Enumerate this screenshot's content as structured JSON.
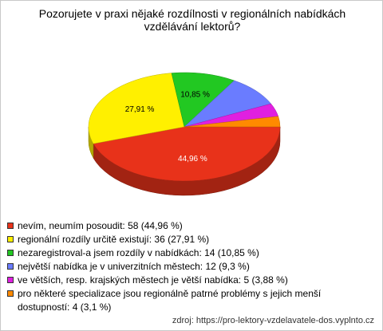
{
  "chart_data": {
    "type": "pie3d",
    "title": "Pozorujete v praxi nějaké rozdílnosti v regionálních nabídkách vzdělávání lektorů?",
    "categories": [
      "nevím, neumím posoudit: 58 (44,96 %)",
      "regionální rozdíly určitě existují: 36 (27,91 %)",
      "nezaregistroval-a jsem rozdíly v nabídkách: 14 (10,85 %)",
      "největší nabídka je v univerzitních městech: 12 (9,3 %)",
      "ve větších, resp. krajských městech je větší nabídka: 5 (3,88 %)",
      "pro některé specializace jsou regionálně patrné problémy s jejich menší dostupností: 4 (3,1 %)"
    ],
    "values": [
      44.96,
      27.91,
      10.85,
      9.3,
      3.88,
      3.1
    ],
    "value_labels": [
      "44,96 %",
      "27,91 %",
      "10,85 %",
      null,
      null,
      null
    ],
    "colors": [
      "#e8321a",
      "#fff000",
      "#22c822",
      "#6a7cff",
      "#e020e0",
      "#ff8a00"
    ],
    "source": "zdroj: https://pro-lektory-vzdelavatele-dos.vyplnto.cz"
  }
}
